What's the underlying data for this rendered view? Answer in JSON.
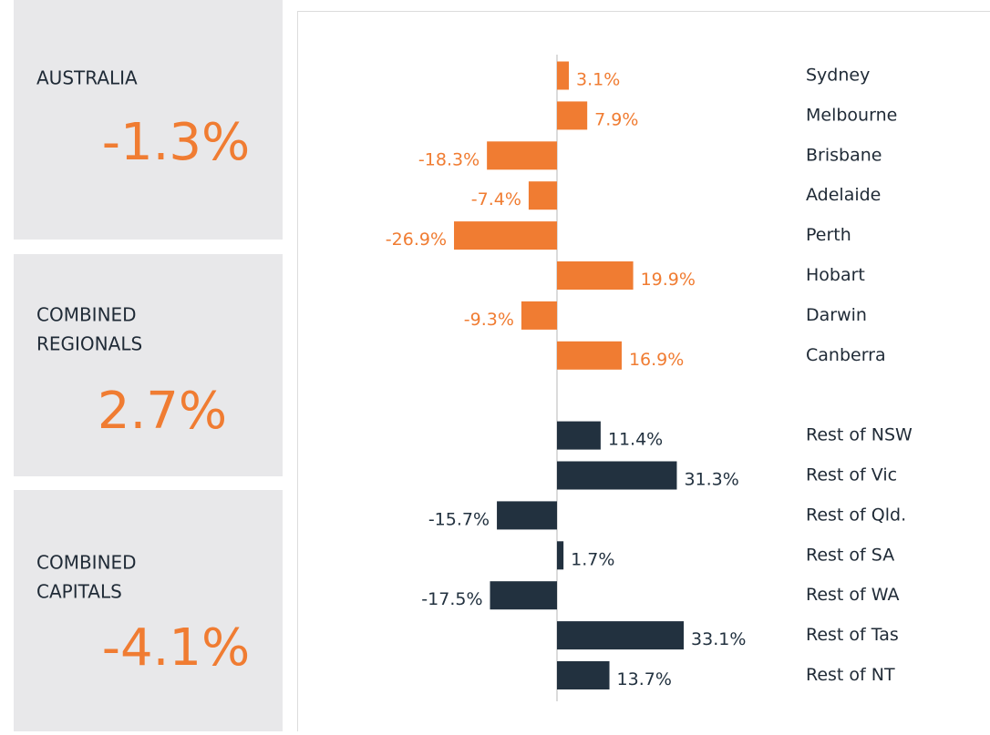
{
  "summary": [
    {
      "label": [
        "AUSTRALIA"
      ],
      "value": "-1.3%"
    },
    {
      "label": [
        "COMBINED",
        "REGIONALS"
      ],
      "value": "2.7%"
    },
    {
      "label": [
        "COMBINED",
        "CAPITALS"
      ],
      "value": "-4.1%"
    }
  ],
  "chart_data": {
    "type": "bar",
    "orientation": "horizontal",
    "xlim": [
      -35,
      35
    ],
    "groups": [
      {
        "color": "#f07c32",
        "categories": [
          "Sydney",
          "Melbourne",
          "Brisbane",
          "Adelaide",
          "Perth",
          "Hobart",
          "Darwin",
          "Canberra"
        ],
        "values": [
          3.1,
          7.9,
          -18.3,
          -7.4,
          -26.9,
          19.9,
          -9.3,
          16.9
        ],
        "value_labels": [
          "3.1%",
          "7.9%",
          "-18.3%",
          "-7.4%",
          "-26.9%",
          "19.9%",
          "-9.3%",
          "16.9%"
        ]
      },
      {
        "color": "#22313f",
        "categories": [
          "Rest of NSW",
          "Rest of Vic",
          "Rest of Qld.",
          "Rest of SA",
          "Rest of WA",
          "Rest of Tas",
          "Rest of NT"
        ],
        "values": [
          11.4,
          31.3,
          -15.7,
          1.7,
          -17.5,
          33.1,
          13.7
        ],
        "value_labels": [
          "11.4%",
          "31.3%",
          "-15.7%",
          "1.7%",
          "-17.5%",
          "33.1%",
          "13.7%"
        ]
      }
    ]
  }
}
